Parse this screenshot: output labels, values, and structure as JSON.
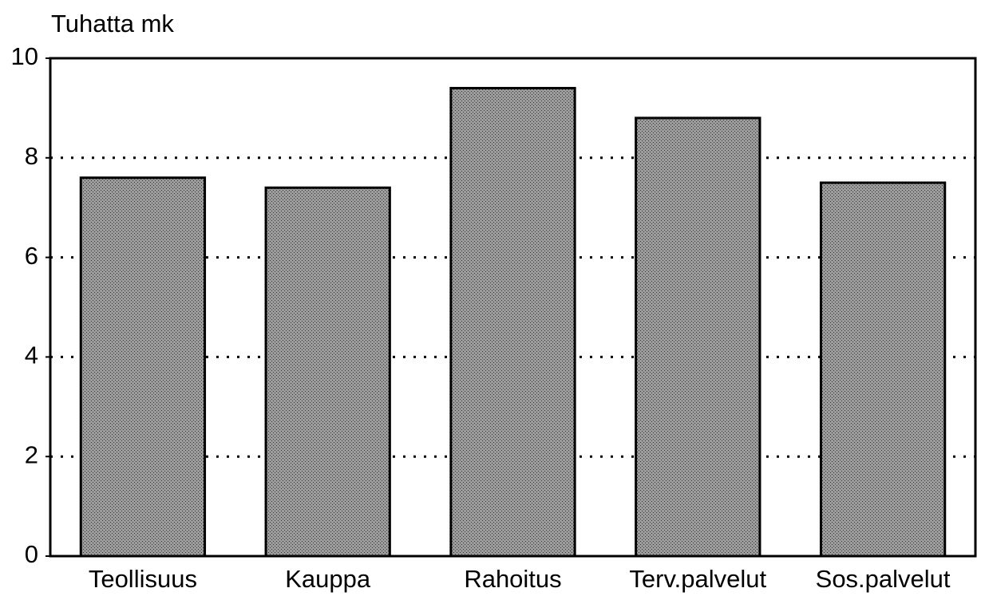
{
  "chart_data": {
    "type": "bar",
    "y_axis_label": "Tuhatta mk",
    "categories": [
      "Teollisuus",
      "Kauppa",
      "Rahoitus",
      "Terv.palvelut",
      "Sos.palvelut"
    ],
    "values": [
      7.6,
      7.4,
      9.4,
      8.8,
      7.5
    ],
    "color": "#9c9c9c",
    "ylim": [
      0,
      10
    ],
    "yticks": [
      0,
      2,
      4,
      6,
      8,
      10
    ],
    "grid": true
  }
}
